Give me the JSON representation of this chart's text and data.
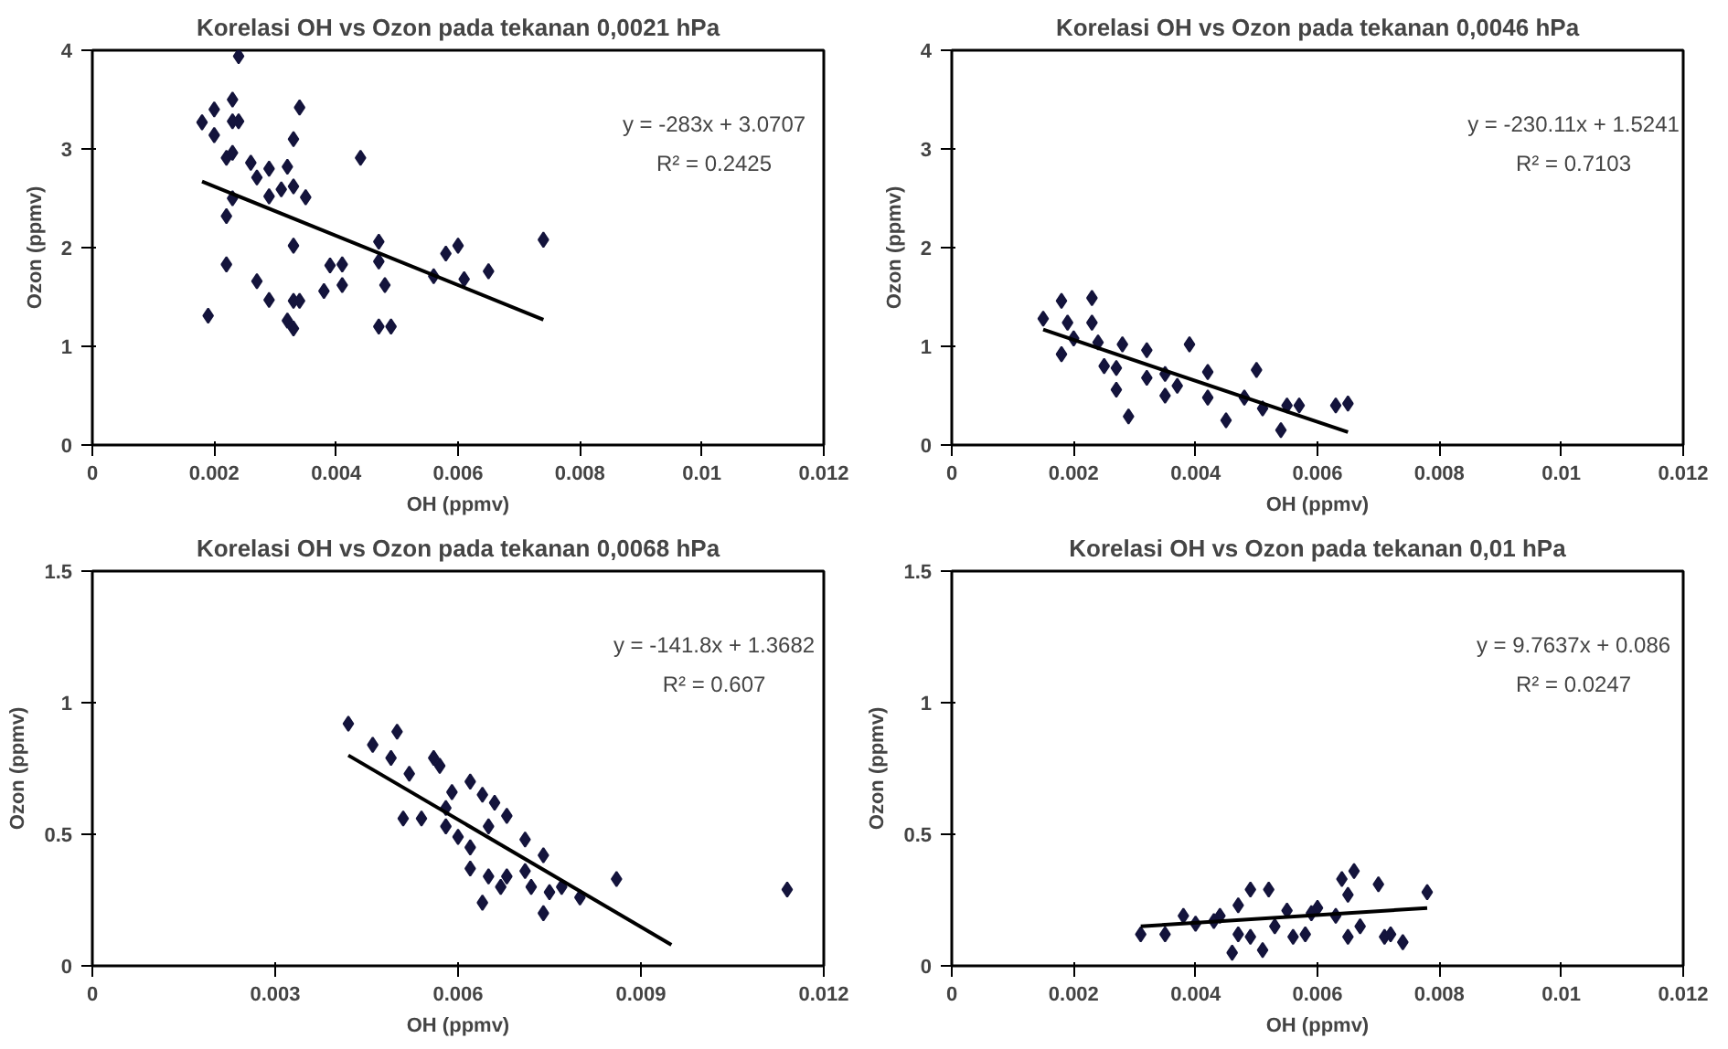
{
  "chart_data": [
    {
      "type": "scatter",
      "title": "Korelasi OH vs Ozon pada tekanan 0,0021 hPa",
      "xlabel": "OH (ppmv)",
      "ylabel": "Ozon (ppmv)",
      "xlim": [
        0,
        0.012
      ],
      "ylim": [
        0,
        4
      ],
      "xticks": [
        0,
        0.002,
        0.004,
        0.006,
        0.008,
        0.01,
        0.012
      ],
      "yticks": [
        0,
        1,
        2,
        3,
        4
      ],
      "marker": "diamond",
      "annotations": [
        "y = -283x + 3.0707",
        "R² = 0.2425"
      ],
      "series": [
        {
          "color": "#14143c",
          "x": [
            0.0018,
            0.002,
            0.002,
            0.0024,
            0.0023,
            0.0024,
            0.0023,
            0.0022,
            0.0023,
            0.0026,
            0.0027,
            0.0029,
            0.0029,
            0.0031,
            0.0032,
            0.0033,
            0.0034,
            0.0035,
            0.0033,
            0.0022,
            0.0023,
            0.0019,
            0.0022,
            0.0027,
            0.0029,
            0.0032,
            0.0033,
            0.0033,
            0.0034,
            0.0033,
            0.0038,
            0.0039,
            0.0041,
            0.0041,
            0.0044,
            0.0047,
            0.0047,
            0.0048,
            0.0047,
            0.0049,
            0.0056,
            0.0058,
            0.006,
            0.0061,
            0.0065,
            0.0074
          ],
          "values": [
            3.27,
            3.4,
            3.14,
            3.94,
            3.5,
            3.28,
            3.28,
            2.91,
            2.96,
            2.86,
            2.71,
            2.8,
            2.52,
            2.59,
            2.82,
            3.1,
            3.42,
            2.51,
            2.62,
            2.32,
            2.5,
            1.31,
            1.83,
            1.66,
            1.47,
            1.26,
            1.18,
            1.46,
            1.46,
            2.02,
            1.56,
            1.82,
            1.83,
            1.62,
            2.91,
            2.06,
            1.86,
            1.62,
            1.2,
            1.2,
            1.71,
            1.94,
            2.02,
            1.68,
            1.76,
            2.08
          ]
        },
        {
          "type": "line",
          "color": "#000000",
          "marker": "none",
          "x": [
            0.0018,
            0.0074
          ],
          "values": [
            2.67,
            1.27
          ]
        }
      ]
    },
    {
      "type": "scatter",
      "title": "Korelasi OH vs Ozon pada tekanan 0,0046 hPa",
      "xlabel": "OH (ppmv)",
      "ylabel": "Ozon (ppmv)",
      "xlim": [
        0,
        0.012
      ],
      "ylim": [
        0,
        4
      ],
      "xticks": [
        0,
        0.002,
        0.004,
        0.006,
        0.008,
        0.01,
        0.012
      ],
      "yticks": [
        0,
        1,
        2,
        3,
        4
      ],
      "marker": "diamond",
      "annotations": [
        "y = -230.11x + 1.5241",
        "R² = 0.7103"
      ],
      "series": [
        {
          "color": "#14143c",
          "x": [
            0.0015,
            0.0018,
            0.0018,
            0.002,
            0.0019,
            0.0023,
            0.0023,
            0.0024,
            0.0025,
            0.0027,
            0.0027,
            0.0028,
            0.0029,
            0.0032,
            0.0032,
            0.0035,
            0.0035,
            0.0037,
            0.0039,
            0.0042,
            0.0042,
            0.0045,
            0.0048,
            0.005,
            0.0051,
            0.0054,
            0.0055,
            0.0057,
            0.0063,
            0.0065
          ],
          "values": [
            1.28,
            1.46,
            0.92,
            1.08,
            1.24,
            1.49,
            1.24,
            1.04,
            0.8,
            0.78,
            0.56,
            1.02,
            0.29,
            0.96,
            0.68,
            0.72,
            0.5,
            0.6,
            1.02,
            0.74,
            0.48,
            0.25,
            0.48,
            0.76,
            0.37,
            0.15,
            0.4,
            0.4,
            0.4,
            0.42
          ]
        },
        {
          "type": "line",
          "color": "#000000",
          "marker": "none",
          "x": [
            0.0015,
            0.0065
          ],
          "values": [
            1.17,
            0.13
          ]
        }
      ]
    },
    {
      "type": "scatter",
      "title": "Korelasi OH vs Ozon pada tekanan 0,0068 hPa",
      "xlabel": "OH (ppmv)",
      "ylabel": "Ozon (ppmv)",
      "xlim": [
        0,
        0.012
      ],
      "ylim": [
        0,
        1.5
      ],
      "xticks": [
        0,
        0.003,
        0.006,
        0.009,
        0.012
      ],
      "yticks": [
        0,
        0.5,
        1,
        1.5
      ],
      "marker": "diamond",
      "annotations": [
        "y = -141.8x + 1.3682",
        "R² = 0.607"
      ],
      "series": [
        {
          "color": "#14143c",
          "x": [
            0.0042,
            0.0046,
            0.005,
            0.0049,
            0.0052,
            0.0051,
            0.0054,
            0.0056,
            0.0057,
            0.0058,
            0.0059,
            0.0058,
            0.006,
            0.0062,
            0.0062,
            0.0062,
            0.0064,
            0.0065,
            0.0064,
            0.0065,
            0.0066,
            0.0068,
            0.0067,
            0.0068,
            0.0071,
            0.0071,
            0.0072,
            0.0074,
            0.0074,
            0.0075,
            0.0077,
            0.008,
            0.0086,
            0.0114
          ],
          "values": [
            0.92,
            0.84,
            0.89,
            0.79,
            0.73,
            0.56,
            0.56,
            0.79,
            0.76,
            0.6,
            0.66,
            0.53,
            0.49,
            0.7,
            0.45,
            0.37,
            0.65,
            0.53,
            0.24,
            0.34,
            0.62,
            0.57,
            0.3,
            0.34,
            0.48,
            0.36,
            0.3,
            0.42,
            0.2,
            0.28,
            0.3,
            0.26,
            0.33,
            0.29
          ]
        },
        {
          "type": "line",
          "color": "#000000",
          "marker": "none",
          "x": [
            0.0042,
            0.0095
          ],
          "values": [
            0.8,
            0.08
          ]
        }
      ]
    },
    {
      "type": "scatter",
      "title": "Korelasi OH vs Ozon pada tekanan 0,01 hPa",
      "xlabel": "OH (ppmv)",
      "ylabel": "Ozon (ppmv)",
      "xlim": [
        0,
        0.012
      ],
      "ylim": [
        0,
        1.5
      ],
      "xticks": [
        0,
        0.002,
        0.004,
        0.006,
        0.008,
        0.01,
        0.012
      ],
      "yticks": [
        0,
        0.5,
        1,
        1.5
      ],
      "marker": "diamond",
      "annotations": [
        "y = 9.7637x + 0.086",
        "R² = 0.0247"
      ],
      "series": [
        {
          "color": "#14143c",
          "x": [
            0.0031,
            0.0035,
            0.0038,
            0.004,
            0.0043,
            0.0044,
            0.0046,
            0.0047,
            0.0047,
            0.0049,
            0.0049,
            0.0052,
            0.0051,
            0.0053,
            0.0055,
            0.0056,
            0.0058,
            0.0059,
            0.006,
            0.0063,
            0.0064,
            0.0066,
            0.0065,
            0.0065,
            0.0067,
            0.007,
            0.0071,
            0.0072,
            0.0074,
            0.0078
          ],
          "values": [
            0.12,
            0.12,
            0.19,
            0.16,
            0.17,
            0.19,
            0.05,
            0.23,
            0.12,
            0.11,
            0.29,
            0.29,
            0.06,
            0.15,
            0.21,
            0.11,
            0.12,
            0.2,
            0.22,
            0.19,
            0.33,
            0.36,
            0.27,
            0.11,
            0.15,
            0.31,
            0.11,
            0.12,
            0.09,
            0.28
          ]
        },
        {
          "type": "line",
          "color": "#000000",
          "marker": "none",
          "x": [
            0.0031,
            0.0078
          ],
          "values": [
            0.15,
            0.22
          ]
        }
      ]
    }
  ]
}
